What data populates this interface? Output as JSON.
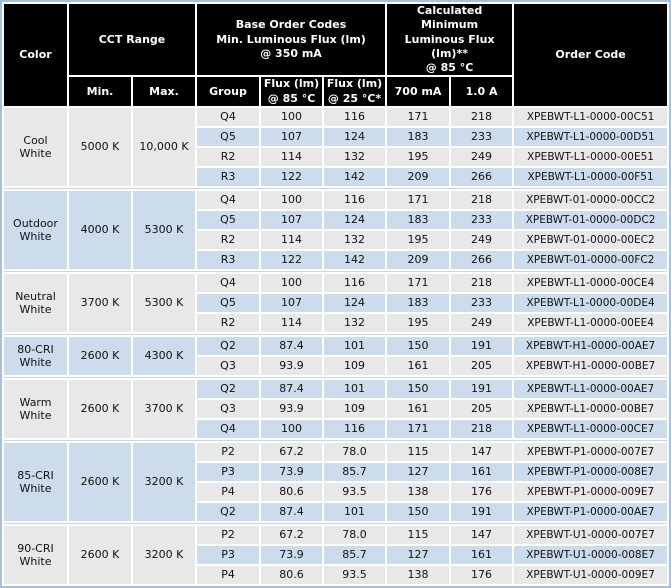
{
  "colors": {
    "header_bg": "#000000",
    "header_text": "#ffffff",
    "row_gray": "#e8e8e8",
    "row_blue": "#ccdcec",
    "divider_line": "#c9d7e5",
    "outer_border": "#aabfd9",
    "text": "#111111"
  },
  "table": {
    "headers": {
      "color": "Color",
      "cct_range": "CCT Range",
      "min": "Min.",
      "max": "Max.",
      "base_order": "Base Order Codes\nMin. Luminous Flux (lm)\n@ 350 mA",
      "group": "Group",
      "flux85": "Flux (lm)\n@ 85 °C",
      "flux25": "Flux (lm)\n@ 25 °C*",
      "calc_min": "Calculated Minimum\nLuminous Flux (lm)**\n@ 85 °C",
      "ma700": "700 mA",
      "a10": "1.0 A",
      "order_code": "Order Code"
    },
    "sections": [
      {
        "color": "Cool White",
        "min": "5000 K",
        "max": "10,000 K",
        "rows": [
          {
            "group": "Q4",
            "flux85": "100",
            "flux25": "116",
            "ma700": "171",
            "a10": "218",
            "code": "XPEBWT-L1-0000-00C51"
          },
          {
            "group": "Q5",
            "flux85": "107",
            "flux25": "124",
            "ma700": "183",
            "a10": "233",
            "code": "XPEBWT-L1-0000-00D51"
          },
          {
            "group": "R2",
            "flux85": "114",
            "flux25": "132",
            "ma700": "195",
            "a10": "249",
            "code": "XPEBWT-L1-0000-00E51"
          },
          {
            "group": "R3",
            "flux85": "122",
            "flux25": "142",
            "ma700": "209",
            "a10": "266",
            "code": "XPEBWT-L1-0000-00F51"
          }
        ]
      },
      {
        "color": "Outdoor White",
        "min": "4000 K",
        "max": "5300 K",
        "rows": [
          {
            "group": "Q4",
            "flux85": "100",
            "flux25": "116",
            "ma700": "171",
            "a10": "218",
            "code": "XPEBWT-01-0000-00CC2"
          },
          {
            "group": "Q5",
            "flux85": "107",
            "flux25": "124",
            "ma700": "183",
            "a10": "233",
            "code": "XPEBWT-01-0000-00DC2"
          },
          {
            "group": "R2",
            "flux85": "114",
            "flux25": "132",
            "ma700": "195",
            "a10": "249",
            "code": "XPEBWT-01-0000-00EC2"
          },
          {
            "group": "R3",
            "flux85": "122",
            "flux25": "142",
            "ma700": "209",
            "a10": "266",
            "code": "XPEBWT-01-0000-00FC2"
          }
        ]
      },
      {
        "color": "Neutral White",
        "min": "3700 K",
        "max": "5300 K",
        "rows": [
          {
            "group": "Q4",
            "flux85": "100",
            "flux25": "116",
            "ma700": "171",
            "a10": "218",
            "code": "XPEBWT-L1-0000-00CE4"
          },
          {
            "group": "Q5",
            "flux85": "107",
            "flux25": "124",
            "ma700": "183",
            "a10": "233",
            "code": "XPEBWT-L1-0000-00DE4"
          },
          {
            "group": "R2",
            "flux85": "114",
            "flux25": "132",
            "ma700": "195",
            "a10": "249",
            "code": "XPEBWT-L1-0000-00EE4"
          }
        ]
      },
      {
        "color": "80-CRI White",
        "min": "2600 K",
        "max": "4300 K",
        "rows": [
          {
            "group": "Q2",
            "flux85": "87.4",
            "flux25": "101",
            "ma700": "150",
            "a10": "191",
            "code": "XPEBWT-H1-0000-00AE7"
          },
          {
            "group": "Q3",
            "flux85": "93.9",
            "flux25": "109",
            "ma700": "161",
            "a10": "205",
            "code": "XPEBWT-H1-0000-00BE7"
          }
        ]
      },
      {
        "color": "Warm White",
        "min": "2600 K",
        "max": "3700 K",
        "rows": [
          {
            "group": "Q2",
            "flux85": "87.4",
            "flux25": "101",
            "ma700": "150",
            "a10": "191",
            "code": "XPEBWT-L1-0000-00AE7"
          },
          {
            "group": "Q3",
            "flux85": "93.9",
            "flux25": "109",
            "ma700": "161",
            "a10": "205",
            "code": "XPEBWT-L1-0000-00BE7"
          },
          {
            "group": "Q4",
            "flux85": "100",
            "flux25": "116",
            "ma700": "171",
            "a10": "218",
            "code": "XPEBWT-L1-0000-00CE7"
          }
        ]
      },
      {
        "color": "85-CRI White",
        "min": "2600 K",
        "max": "3200 K",
        "rows": [
          {
            "group": "P2",
            "flux85": "67.2",
            "flux25": "78.0",
            "ma700": "115",
            "a10": "147",
            "code": "XPEBWT-P1-0000-007E7"
          },
          {
            "group": "P3",
            "flux85": "73.9",
            "flux25": "85.7",
            "ma700": "127",
            "a10": "161",
            "code": "XPEBWT-P1-0000-008E7"
          },
          {
            "group": "P4",
            "flux85": "80.6",
            "flux25": "93.5",
            "ma700": "138",
            "a10": "176",
            "code": "XPEBWT-P1-0000-009E7"
          },
          {
            "group": "Q2",
            "flux85": "87.4",
            "flux25": "101",
            "ma700": "150",
            "a10": "191",
            "code": "XPEBWT-P1-0000-00AE7"
          }
        ]
      },
      {
        "color": "90-CRI White",
        "min": "2600 K",
        "max": "3200 K",
        "rows": [
          {
            "group": "P2",
            "flux85": "67.2",
            "flux25": "78.0",
            "ma700": "115",
            "a10": "147",
            "code": "XPEBWT-U1-0000-007E7"
          },
          {
            "group": "P3",
            "flux85": "73.9",
            "flux25": "85.7",
            "ma700": "127",
            "a10": "161",
            "code": "XPEBWT-U1-0000-008E7"
          },
          {
            "group": "P4",
            "flux85": "80.6",
            "flux25": "93.5",
            "ma700": "138",
            "a10": "176",
            "code": "XPEBWT-U1-0000-009E7"
          }
        ]
      }
    ]
  }
}
